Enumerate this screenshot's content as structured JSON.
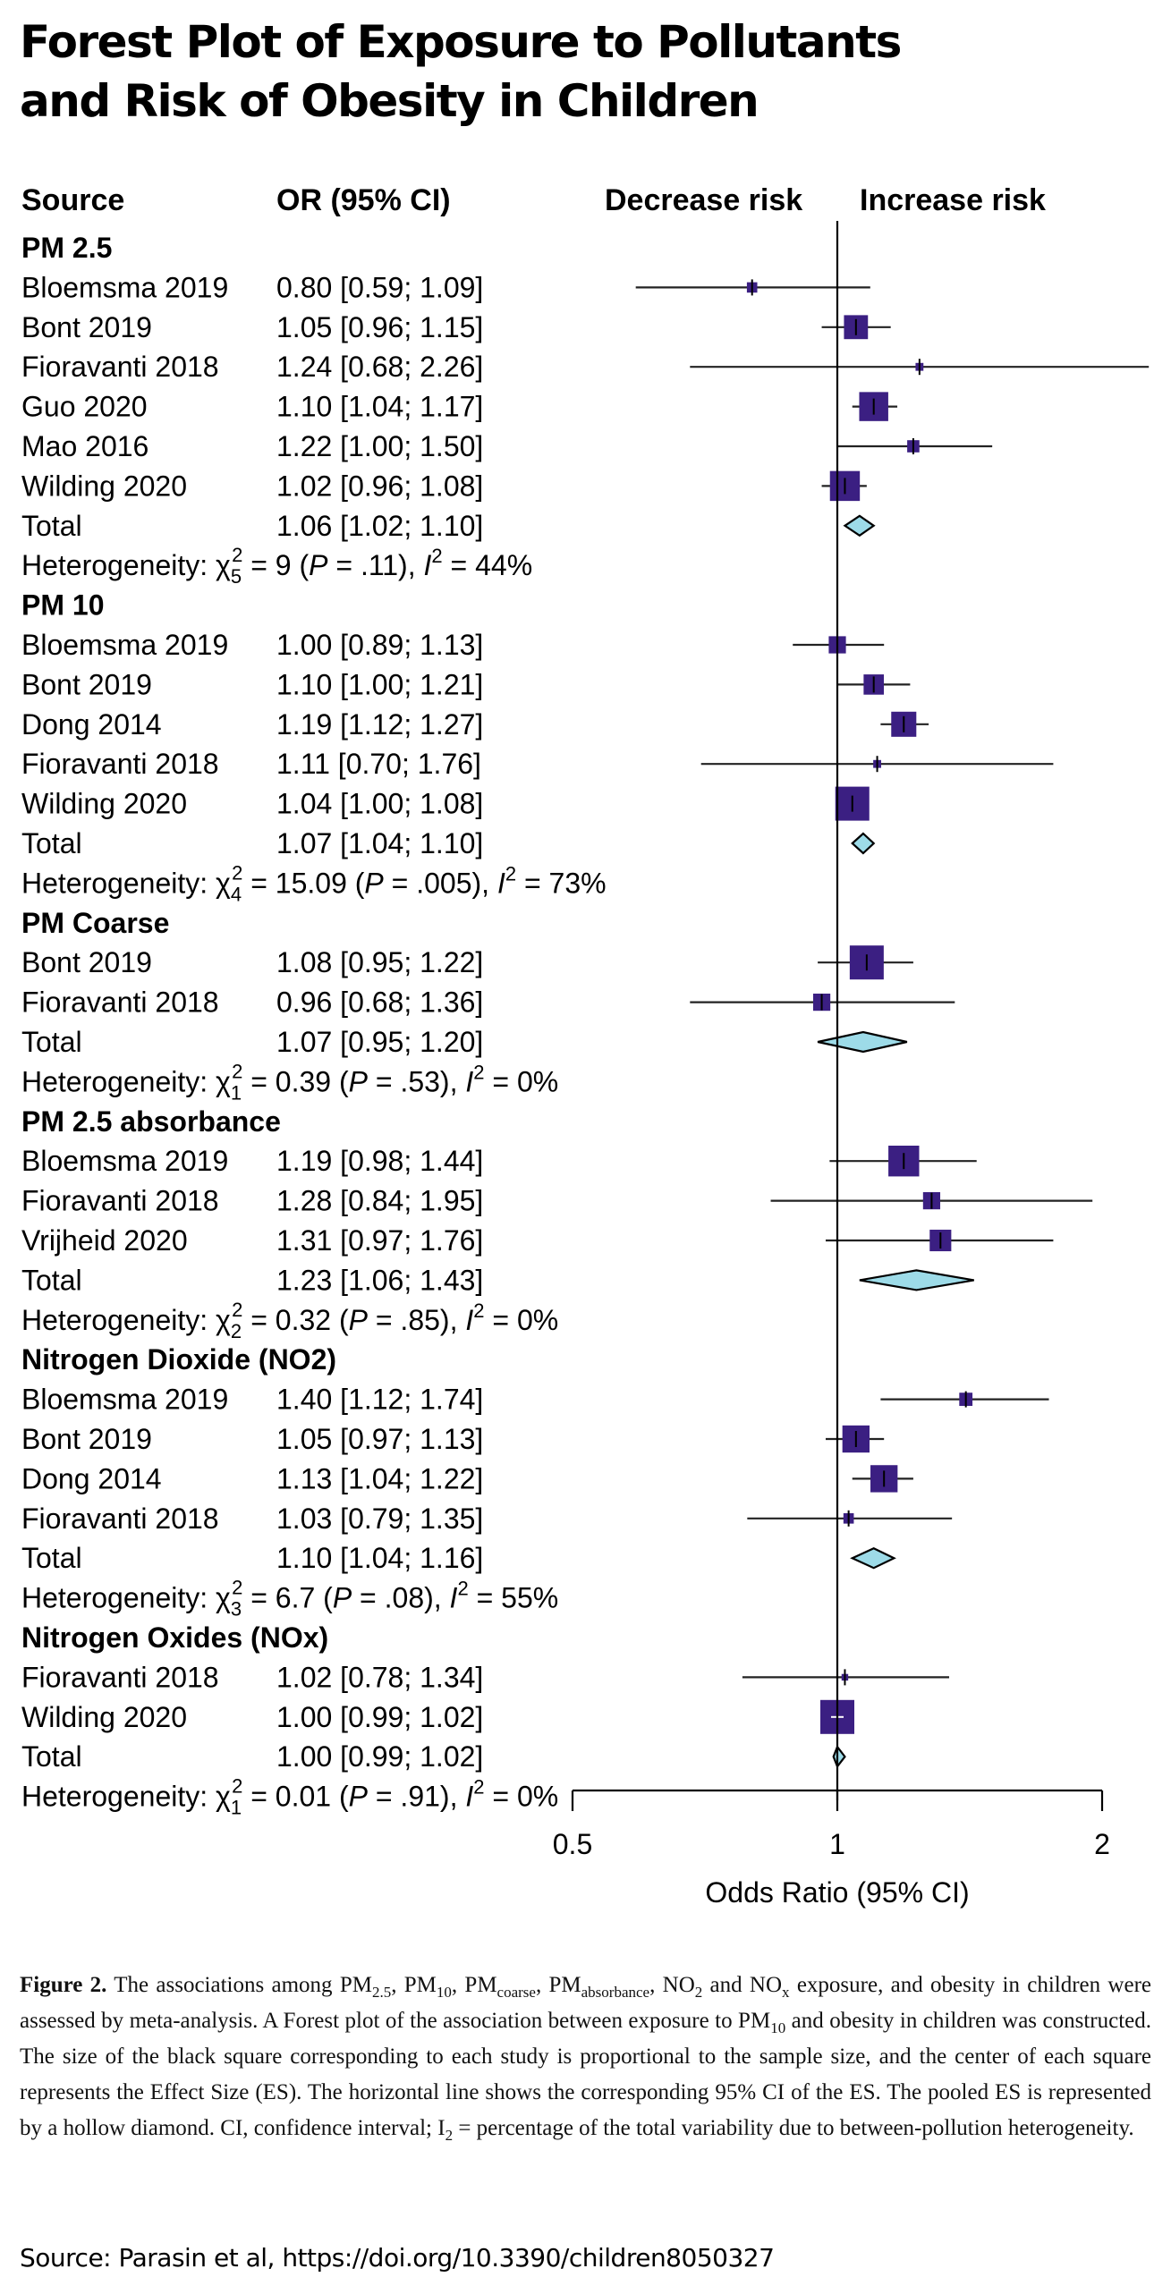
{
  "title_lines": [
    "Forest Plot of Exposure to Pollutants",
    "and Risk of Obesity in Children"
  ],
  "chart_data": {
    "type": "forest",
    "column_headers": {
      "source": "Source",
      "or": "OR (95% CI)"
    },
    "direction_labels": {
      "left": "Decrease risk",
      "right": "Increase risk"
    },
    "x_scale": "log",
    "xlim": [
      0.5,
      2
    ],
    "null_value": 1,
    "xticks": [
      0.5,
      1,
      2
    ],
    "xtick_labels": [
      "0.5",
      "1",
      "2"
    ],
    "xlabel": "Odds Ratio (95% CI)",
    "colors": {
      "study_square": "#3b1f82",
      "pooled_diamond": "#9ddbe8",
      "lines": "#000000"
    },
    "groups": [
      {
        "name": "PM 2.5",
        "studies": [
          {
            "source": "Bloemsma 2019",
            "or_text": "0.80 [0.59; 1.09]",
            "or": 0.8,
            "lo": 0.59,
            "hi": 1.09,
            "weight": 0.05
          },
          {
            "source": "Bont 2019",
            "or_text": "1.05 [0.96; 1.15]",
            "or": 1.05,
            "lo": 0.96,
            "hi": 1.15,
            "weight": 0.45
          },
          {
            "source": "Fioravanti 2018",
            "or_text": "1.24 [0.68; 2.26]",
            "or": 1.24,
            "lo": 0.68,
            "hi": 2.26,
            "weight": 0.02
          },
          {
            "source": "Guo 2020",
            "or_text": "1.10 [1.04; 1.17]",
            "or": 1.1,
            "lo": 1.04,
            "hi": 1.17,
            "weight": 0.7
          },
          {
            "source": "Mao 2016",
            "or_text": "1.22 [1.00; 1.50]",
            "or": 1.22,
            "lo": 1.0,
            "hi": 1.5,
            "weight": 0.08
          },
          {
            "source": "Wilding 2020",
            "or_text": "1.02 [0.96; 1.08]",
            "or": 1.02,
            "lo": 0.96,
            "hi": 1.08,
            "weight": 0.75
          }
        ],
        "total": {
          "source": "Total",
          "or_text": "1.06 [1.02; 1.10]",
          "or": 1.06,
          "lo": 1.02,
          "hi": 1.1
        },
        "heterogeneity": {
          "label": "Heterogeneity:",
          "df": "5",
          "chi2": "9",
          "p": ".11",
          "i2": "44%"
        }
      },
      {
        "name": "PM 10",
        "studies": [
          {
            "source": "Bloemsma 2019",
            "or_text": "1.00 [0.89; 1.13]",
            "or": 1.0,
            "lo": 0.89,
            "hi": 1.13,
            "weight": 0.2
          },
          {
            "source": "Bont 2019",
            "or_text": "1.10 [1.00; 1.21]",
            "or": 1.1,
            "lo": 1.0,
            "hi": 1.21,
            "weight": 0.3
          },
          {
            "source": "Dong 2014",
            "or_text": "1.19 [1.12; 1.27]",
            "or": 1.19,
            "lo": 1.12,
            "hi": 1.27,
            "weight": 0.5
          },
          {
            "source": "Fioravanti 2018",
            "or_text": "1.11 [0.70; 1.76]",
            "or": 1.11,
            "lo": 0.7,
            "hi": 1.76,
            "weight": 0.02
          },
          {
            "source": "Wilding 2020",
            "or_text": "1.04 [1.00; 1.08]",
            "or": 1.04,
            "lo": 1.0,
            "hi": 1.08,
            "weight": 1.0
          }
        ],
        "total": {
          "source": "Total",
          "or_text": "1.07 [1.04; 1.10]",
          "or": 1.07,
          "lo": 1.04,
          "hi": 1.1
        },
        "heterogeneity": {
          "label": "Heterogeneity:",
          "df": "4",
          "chi2": "15.09",
          "p": ".005",
          "i2": "73%"
        }
      },
      {
        "name": "PM Coarse",
        "studies": [
          {
            "source": "Bont 2019",
            "or_text": "1.08 [0.95; 1.22]",
            "or": 1.08,
            "lo": 0.95,
            "hi": 1.22,
            "weight": 1.0
          },
          {
            "source": "Fioravanti 2018",
            "or_text": "0.96 [0.68; 1.36]",
            "or": 0.96,
            "lo": 0.68,
            "hi": 1.36,
            "weight": 0.2
          }
        ],
        "total": {
          "source": "Total",
          "or_text": "1.07 [0.95; 1.20]",
          "or": 1.07,
          "lo": 0.95,
          "hi": 1.2
        },
        "heterogeneity": {
          "label": "Heterogeneity:",
          "df": "1",
          "chi2": "0.39",
          "p": ".53",
          "i2": "0%"
        }
      },
      {
        "name": "PM 2.5 absorbance",
        "studies": [
          {
            "source": "Bloemsma 2019",
            "or_text": "1.19 [0.98; 1.44]",
            "or": 1.19,
            "lo": 0.98,
            "hi": 1.44,
            "weight": 0.8
          },
          {
            "source": "Fioravanti 2018",
            "or_text": "1.28 [0.84; 1.95]",
            "or": 1.28,
            "lo": 0.84,
            "hi": 1.95,
            "weight": 0.2
          },
          {
            "source": "Vrijheid 2020",
            "or_text": "1.31 [0.97; 1.76]",
            "or": 1.31,
            "lo": 0.97,
            "hi": 1.76,
            "weight": 0.35
          }
        ],
        "total": {
          "source": "Total",
          "or_text": "1.23 [1.06; 1.43]",
          "or": 1.23,
          "lo": 1.06,
          "hi": 1.43
        },
        "heterogeneity": {
          "label": "Heterogeneity:",
          "df": "2",
          "chi2": "0.32",
          "p": ".85",
          "i2": "0%"
        }
      },
      {
        "name": "Nitrogen Dioxide (NO2)",
        "studies": [
          {
            "source": "Bloemsma 2019",
            "or_text": "1.40 [1.12; 1.74]",
            "or": 1.4,
            "lo": 1.12,
            "hi": 1.74,
            "weight": 0.1
          },
          {
            "source": "Bont 2019",
            "or_text": "1.05 [0.97; 1.13]",
            "or": 1.05,
            "lo": 0.97,
            "hi": 1.13,
            "weight": 0.6
          },
          {
            "source": "Dong 2014",
            "or_text": "1.13 [1.04; 1.22]",
            "or": 1.13,
            "lo": 1.04,
            "hi": 1.22,
            "weight": 0.6
          },
          {
            "source": "Fioravanti 2018",
            "or_text": "1.03 [0.79; 1.35]",
            "or": 1.03,
            "lo": 0.79,
            "hi": 1.35,
            "weight": 0.05
          }
        ],
        "total": {
          "source": "Total",
          "or_text": "1.10 [1.04; 1.16]",
          "or": 1.1,
          "lo": 1.04,
          "hi": 1.16
        },
        "heterogeneity": {
          "label": "Heterogeneity:",
          "df": "3",
          "chi2": "6.7",
          "p": ".08",
          "i2": "55%"
        }
      },
      {
        "name": "Nitrogen Oxides (NOx)",
        "studies": [
          {
            "source": "Fioravanti 2018",
            "or_text": "1.02 [0.78; 1.34]",
            "or": 1.02,
            "lo": 0.78,
            "hi": 1.34,
            "weight": 0.01
          },
          {
            "source": "Wilding 2020",
            "or_text": "1.00 [0.99; 1.02]",
            "or": 1.0,
            "lo": 0.99,
            "hi": 1.02,
            "weight": 1.0
          }
        ],
        "total": {
          "source": "Total",
          "or_text": "1.00 [0.99; 1.02]",
          "or": 1.0,
          "lo": 0.99,
          "hi": 1.02
        },
        "heterogeneity": {
          "label": "Heterogeneity:",
          "df": "1",
          "chi2": "0.01",
          "p": ".91",
          "i2": "0%"
        }
      }
    ]
  },
  "caption": {
    "label": "Figure 2.",
    "text_parts": [
      " The associations among PM",
      "2.5",
      ", PM",
      "10",
      ", PM",
      "coarse",
      ", PM",
      "absorbance",
      ", NO",
      "2",
      " and NO",
      "x",
      " exposure, and obesity in children were assessed by meta-analysis. A Forest plot of the association between exposure to PM",
      "10",
      " and obesity in children was constructed. The size of the black square corresponding to each study is proportional to the sample size, and the center of each square represents the Effect Size (ES). The horizontal line shows the corresponding 95% CI of the ES. The pooled ES is represented by a hollow diamond. CI, confidence interval; I",
      "2",
      " = percentage of the total variability due to between-pollution heterogeneity."
    ]
  },
  "source": "Source: Parasin et al, https://doi.org/10.3390/children8050327"
}
